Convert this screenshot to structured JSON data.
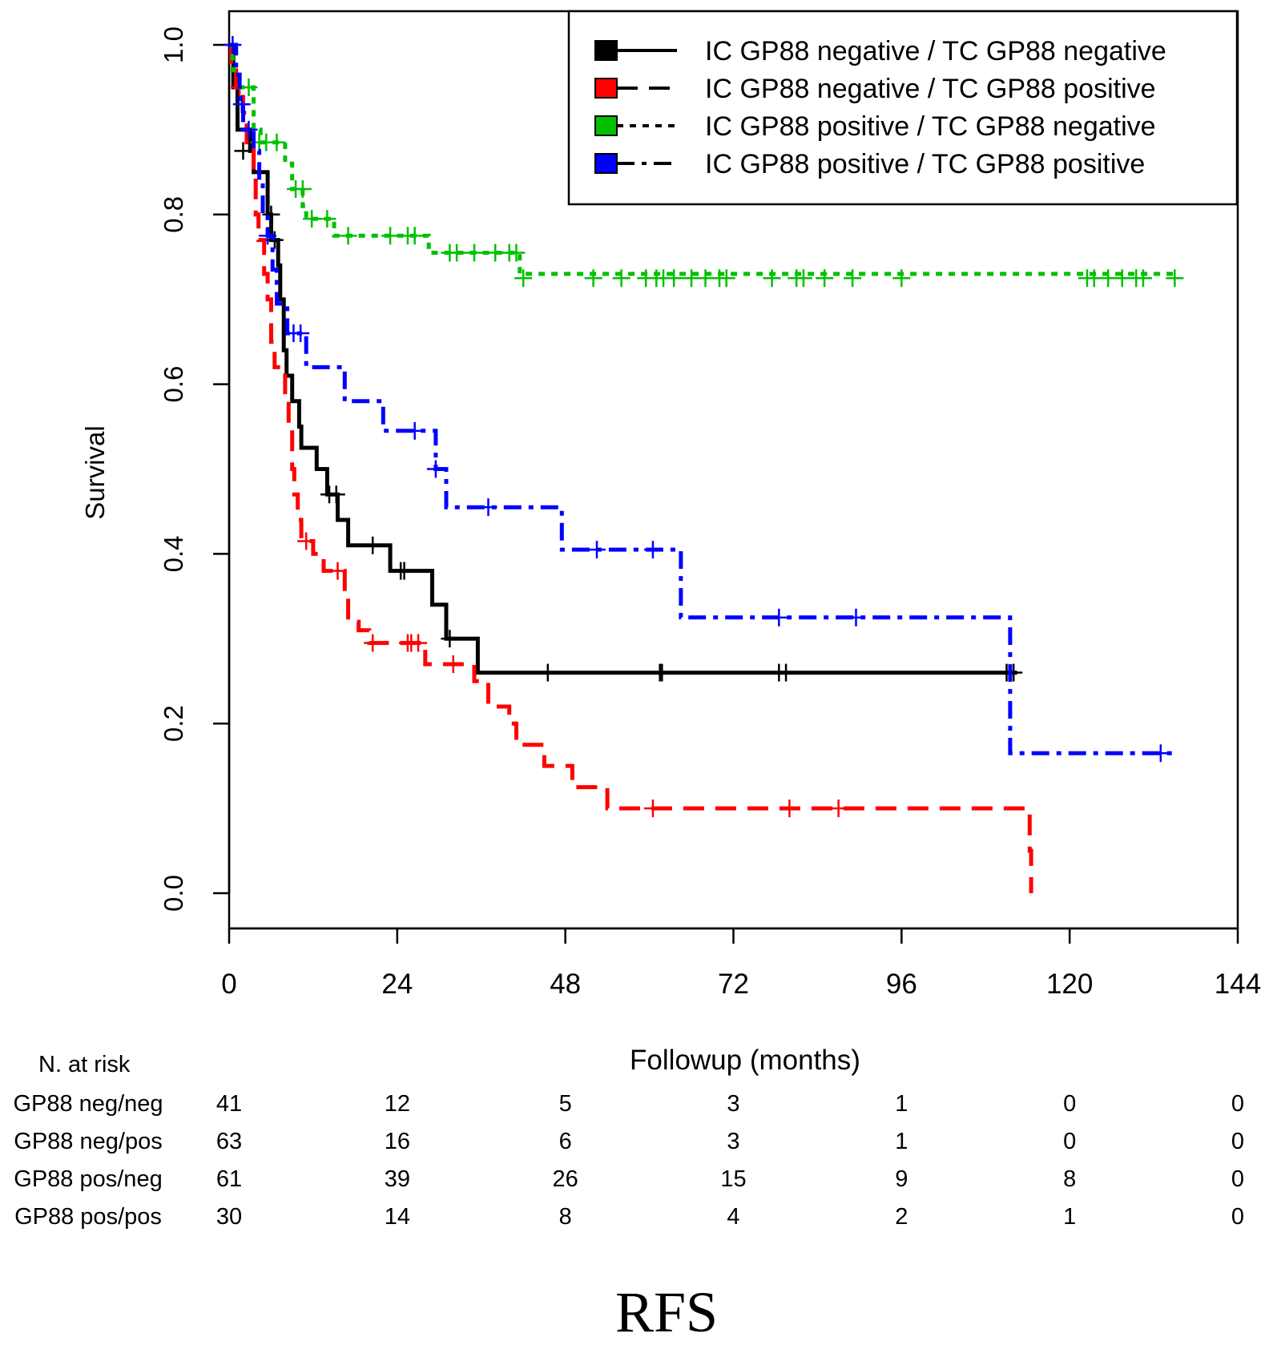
{
  "chart_data": {
    "type": "line",
    "subtype": "kaplan-meier-survival",
    "title": "RFS",
    "xlabel": "Followup (months)",
    "ylabel": "Survival",
    "xlim": [
      0,
      144
    ],
    "ylim": [
      0.0,
      1.0
    ],
    "xticks": [
      0,
      24,
      48,
      72,
      96,
      120,
      144
    ],
    "yticks": [
      0.0,
      0.2,
      0.4,
      0.6,
      0.8,
      1.0
    ],
    "ytick_labels": [
      "0.0",
      "0.2",
      "0.4",
      "0.6",
      "0.8",
      "1.0"
    ],
    "legend_position": "top-right",
    "series": [
      {
        "name": "IC GP88 negative / TC GP88 negative",
        "color": "#000000",
        "dash": "solid",
        "steps": [
          [
            0,
            1.0
          ],
          [
            0.6,
            0.95
          ],
          [
            1.2,
            0.9
          ],
          [
            3,
            0.875
          ],
          [
            3.5,
            0.85
          ],
          [
            5.5,
            0.8
          ],
          [
            6,
            0.77
          ],
          [
            7,
            0.74
          ],
          [
            7.3,
            0.7
          ],
          [
            7.8,
            0.64
          ],
          [
            8.2,
            0.61
          ],
          [
            9,
            0.58
          ],
          [
            10,
            0.55
          ],
          [
            10.3,
            0.525
          ],
          [
            12.5,
            0.5
          ],
          [
            14,
            0.47
          ],
          [
            15.5,
            0.44
          ],
          [
            17,
            0.41
          ],
          [
            23,
            0.38
          ],
          [
            29,
            0.34
          ],
          [
            31,
            0.3
          ],
          [
            35.5,
            0.26
          ],
          [
            112.5,
            0.26
          ]
        ],
        "censors": [
          [
            2,
            0.875
          ],
          [
            6,
            0.8
          ],
          [
            6.5,
            0.77
          ],
          [
            14.3,
            0.47
          ],
          [
            15.3,
            0.47
          ],
          [
            20.5,
            0.41
          ],
          [
            24.5,
            0.38
          ],
          [
            25,
            0.38
          ],
          [
            31.5,
            0.3
          ],
          [
            45.5,
            0.26
          ],
          [
            61.5,
            0.26
          ],
          [
            61.8,
            0.26
          ],
          [
            78.5,
            0.26
          ],
          [
            79.5,
            0.26
          ],
          [
            111,
            0.26
          ],
          [
            112,
            0.26
          ]
        ]
      },
      {
        "name": "IC GP88 negative / TC GP88 positive",
        "color": "#ff0000",
        "dash": "long-dash",
        "steps": [
          [
            0,
            1.0
          ],
          [
            0.3,
            0.97
          ],
          [
            1,
            0.95
          ],
          [
            2,
            0.92
          ],
          [
            2.5,
            0.88
          ],
          [
            3.5,
            0.84
          ],
          [
            3.8,
            0.8
          ],
          [
            4.2,
            0.77
          ],
          [
            5,
            0.73
          ],
          [
            5.5,
            0.7
          ],
          [
            6,
            0.65
          ],
          [
            6.5,
            0.62
          ],
          [
            8,
            0.58
          ],
          [
            8.5,
            0.55
          ],
          [
            9,
            0.5
          ],
          [
            9.3,
            0.47
          ],
          [
            9.8,
            0.44
          ],
          [
            10.3,
            0.415
          ],
          [
            12,
            0.4
          ],
          [
            13.5,
            0.38
          ],
          [
            16.5,
            0.35
          ],
          [
            17,
            0.32
          ],
          [
            18.5,
            0.31
          ],
          [
            20,
            0.295
          ],
          [
            28,
            0.27
          ],
          [
            35,
            0.25
          ],
          [
            37,
            0.22
          ],
          [
            40,
            0.2
          ],
          [
            41,
            0.175
          ],
          [
            45,
            0.15
          ],
          [
            49,
            0.125
          ],
          [
            54,
            0.1
          ],
          [
            114,
            0.1
          ],
          [
            114.3,
            0.05
          ],
          [
            114.5,
            0.0
          ]
        ],
        "censors": [
          [
            1.5,
            0.95
          ],
          [
            11,
            0.415
          ],
          [
            15.5,
            0.38
          ],
          [
            20.5,
            0.295
          ],
          [
            25.5,
            0.295
          ],
          [
            26,
            0.295
          ],
          [
            27,
            0.295
          ],
          [
            32,
            0.27
          ],
          [
            60.5,
            0.1
          ],
          [
            80,
            0.1
          ],
          [
            87,
            0.1
          ]
        ]
      },
      {
        "name": "IC GP88 positive / TC GP88 negative",
        "color": "#00c000",
        "dash": "dotted",
        "steps": [
          [
            0,
            1.0
          ],
          [
            0.5,
            0.97
          ],
          [
            1.5,
            0.95
          ],
          [
            3.5,
            0.9
          ],
          [
            4.5,
            0.885
          ],
          [
            8,
            0.86
          ],
          [
            9,
            0.83
          ],
          [
            10.5,
            0.81
          ],
          [
            11,
            0.795
          ],
          [
            15,
            0.775
          ],
          [
            28.5,
            0.755
          ],
          [
            41.5,
            0.73
          ],
          [
            135,
            0.725
          ]
        ],
        "censors": [
          [
            2.8,
            0.95
          ],
          [
            4.3,
            0.885
          ],
          [
            5.3,
            0.885
          ],
          [
            6.8,
            0.885
          ],
          [
            9.5,
            0.83
          ],
          [
            10.5,
            0.83
          ],
          [
            11.8,
            0.795
          ],
          [
            14,
            0.795
          ],
          [
            17,
            0.775
          ],
          [
            23,
            0.775
          ],
          [
            25.5,
            0.775
          ],
          [
            26.5,
            0.775
          ],
          [
            31.5,
            0.755
          ],
          [
            32.5,
            0.755
          ],
          [
            35,
            0.755
          ],
          [
            38,
            0.755
          ],
          [
            40,
            0.755
          ],
          [
            41,
            0.755
          ],
          [
            42,
            0.725
          ],
          [
            52,
            0.725
          ],
          [
            56,
            0.725
          ],
          [
            59.5,
            0.725
          ],
          [
            61,
            0.725
          ],
          [
            62,
            0.725
          ],
          [
            63.5,
            0.725
          ],
          [
            66,
            0.725
          ],
          [
            68,
            0.725
          ],
          [
            70,
            0.725
          ],
          [
            71,
            0.725
          ],
          [
            77.5,
            0.725
          ],
          [
            81,
            0.725
          ],
          [
            82,
            0.725
          ],
          [
            85,
            0.725
          ],
          [
            89,
            0.725
          ],
          [
            96,
            0.725
          ],
          [
            122.5,
            0.725
          ],
          [
            123.5,
            0.725
          ],
          [
            125.5,
            0.725
          ],
          [
            127.5,
            0.725
          ],
          [
            129.5,
            0.725
          ],
          [
            130.5,
            0.725
          ],
          [
            135,
            0.725
          ]
        ]
      },
      {
        "name": "IC GP88 positive / TC GP88 positive",
        "color": "#0000ff",
        "dash": "dash-dot",
        "steps": [
          [
            0,
            1.0
          ],
          [
            1,
            0.965
          ],
          [
            1.5,
            0.93
          ],
          [
            2,
            0.9
          ],
          [
            3.5,
            0.875
          ],
          [
            4.3,
            0.84
          ],
          [
            4.8,
            0.8
          ],
          [
            5.5,
            0.775
          ],
          [
            6.2,
            0.735
          ],
          [
            6.8,
            0.695
          ],
          [
            8.3,
            0.66
          ],
          [
            11,
            0.62
          ],
          [
            16.5,
            0.58
          ],
          [
            22,
            0.545
          ],
          [
            29.5,
            0.5
          ],
          [
            31,
            0.455
          ],
          [
            47.5,
            0.405
          ],
          [
            64.5,
            0.325
          ],
          [
            111.5,
            0.165
          ],
          [
            135,
            0.165
          ]
        ],
        "censors": [
          [
            0.5,
            1.0
          ],
          [
            1.8,
            0.93
          ],
          [
            2.8,
            0.9
          ],
          [
            5.5,
            0.775
          ],
          [
            9.2,
            0.66
          ],
          [
            10.2,
            0.66
          ],
          [
            26.5,
            0.545
          ],
          [
            29.5,
            0.5
          ],
          [
            37,
            0.455
          ],
          [
            52.5,
            0.405
          ],
          [
            60.5,
            0.405
          ],
          [
            78.5,
            0.325
          ],
          [
            89.5,
            0.325
          ],
          [
            133,
            0.165
          ]
        ]
      }
    ]
  },
  "risk_table": {
    "header": "N. at risk",
    "times": [
      0,
      24,
      48,
      72,
      96,
      120,
      144
    ],
    "rows": [
      {
        "label": "GP88 neg/neg",
        "values": [
          "41",
          "12",
          "5",
          "3",
          "1",
          "0",
          "0"
        ]
      },
      {
        "label": "GP88 neg/pos",
        "values": [
          "63",
          "16",
          "6",
          "3",
          "1",
          "0",
          "0"
        ]
      },
      {
        "label": "GP88 pos/neg",
        "values": [
          "61",
          "39",
          "26",
          "15",
          "9",
          "8",
          "0"
        ]
      },
      {
        "label": "GP88 pos/pos",
        "values": [
          "30",
          "14",
          "8",
          "4",
          "2",
          "1",
          "0"
        ]
      }
    ]
  }
}
